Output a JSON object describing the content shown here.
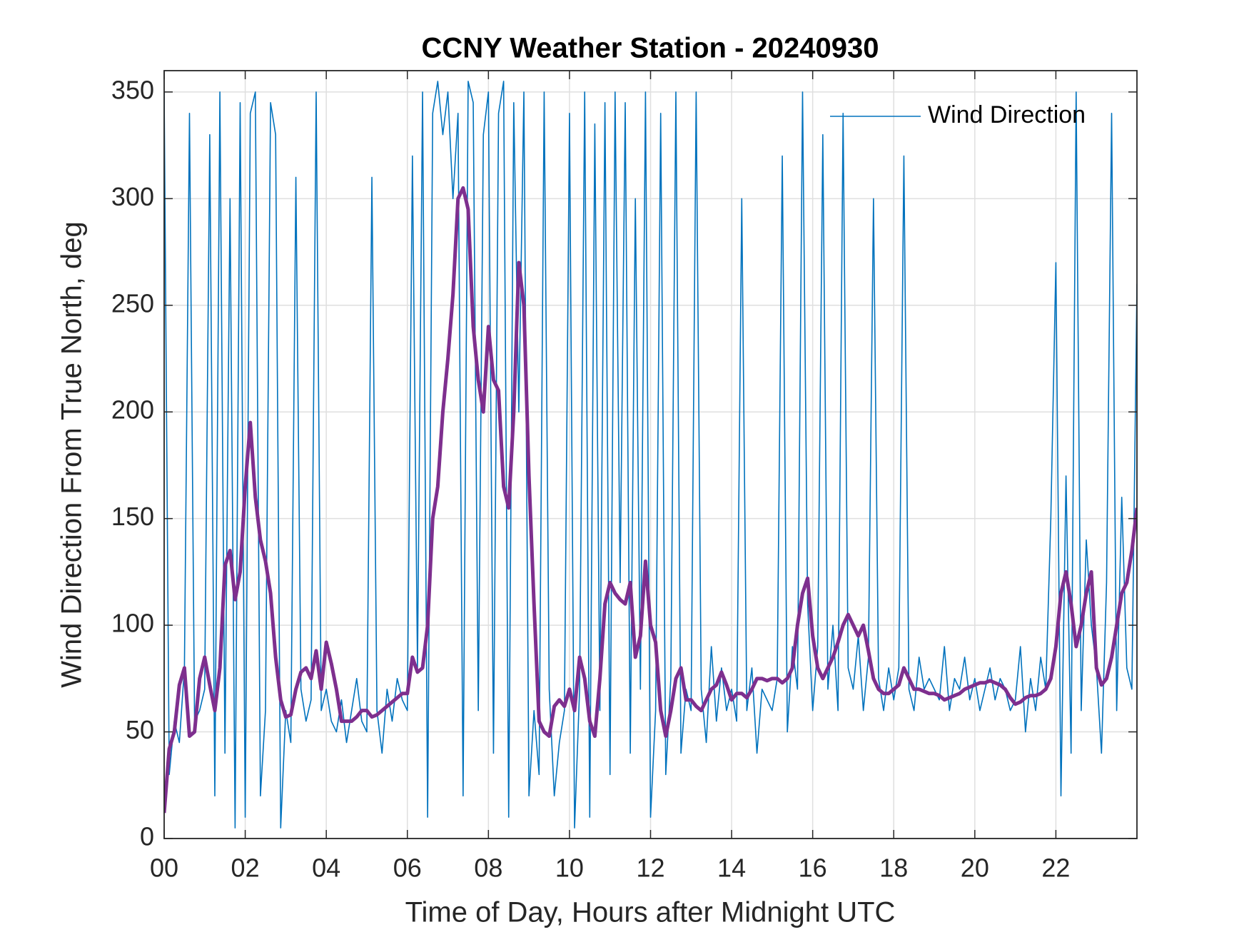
{
  "chart_data": {
    "type": "line",
    "title": "CCNY Weather Station - 20240930",
    "xlabel": "Time of Day, Hours after Midnight UTC",
    "ylabel": "Wind Direction From True North, deg",
    "xlim": [
      0,
      24
    ],
    "ylim": [
      0,
      360
    ],
    "xticks": [
      {
        "value": 0,
        "label": "00"
      },
      {
        "value": 2,
        "label": "02"
      },
      {
        "value": 4,
        "label": "04"
      },
      {
        "value": 6,
        "label": "06"
      },
      {
        "value": 8,
        "label": "08"
      },
      10,
      12,
      14,
      16,
      18,
      20,
      22
    ],
    "yticks": [
      0,
      50,
      100,
      150,
      200,
      250,
      300,
      350
    ],
    "grid": true,
    "legend": "upper right",
    "x": [
      0,
      0.125,
      0.25,
      0.375,
      0.5,
      0.625,
      0.75,
      0.875,
      1,
      1.125,
      1.25,
      1.375,
      1.5,
      1.625,
      1.75,
      1.875,
      2,
      2.125,
      2.25,
      2.375,
      2.5,
      2.625,
      2.75,
      2.875,
      3,
      3.125,
      3.25,
      3.375,
      3.5,
      3.625,
      3.75,
      3.875,
      4,
      4.125,
      4.25,
      4.375,
      4.5,
      4.625,
      4.75,
      4.875,
      5,
      5.125,
      5.25,
      5.375,
      5.5,
      5.625,
      5.75,
      5.875,
      6,
      6.125,
      6.25,
      6.375,
      6.5,
      6.625,
      6.75,
      6.875,
      7,
      7.125,
      7.25,
      7.375,
      7.5,
      7.625,
      7.75,
      7.875,
      8,
      8.125,
      8.25,
      8.375,
      8.5,
      8.625,
      8.75,
      8.875,
      9,
      9.125,
      9.25,
      9.375,
      9.5,
      9.625,
      9.75,
      9.875,
      10,
      10.125,
      10.25,
      10.375,
      10.5,
      10.625,
      10.75,
      10.875,
      11,
      11.125,
      11.25,
      11.375,
      11.5,
      11.625,
      11.75,
      11.875,
      12,
      12.125,
      12.25,
      12.375,
      12.5,
      12.625,
      12.75,
      12.875,
      13,
      13.125,
      13.25,
      13.375,
      13.5,
      13.625,
      13.75,
      13.875,
      14,
      14.125,
      14.25,
      14.375,
      14.5,
      14.625,
      14.75,
      14.875,
      15,
      15.125,
      15.25,
      15.375,
      15.5,
      15.625,
      15.75,
      15.875,
      16,
      16.125,
      16.25,
      16.375,
      16.5,
      16.625,
      16.75,
      16.875,
      17,
      17.125,
      17.25,
      17.375,
      17.5,
      17.625,
      17.75,
      17.875,
      18,
      18.125,
      18.25,
      18.375,
      18.5,
      18.625,
      18.75,
      18.875,
      19,
      19.125,
      19.25,
      19.375,
      19.5,
      19.625,
      19.75,
      19.875,
      20,
      20.125,
      20.25,
      20.375,
      20.5,
      20.625,
      20.75,
      20.875,
      21,
      21.125,
      21.25,
      21.375,
      21.5,
      21.625,
      21.75,
      21.875,
      22,
      22.125,
      22.25,
      22.375,
      22.5,
      22.625,
      22.75,
      22.875,
      23,
      23.125,
      23.25,
      23.375,
      23.5,
      23.625,
      23.75,
      23.875,
      24
    ],
    "series": [
      {
        "name": "Wind Direction",
        "color": "#0072bd",
        "values": [
          350,
          30,
          55,
          45,
          80,
          340,
          55,
          60,
          70,
          330,
          20,
          350,
          40,
          300,
          5,
          345,
          10,
          340,
          350,
          20,
          60,
          345,
          330,
          5,
          60,
          45,
          310,
          70,
          55,
          65,
          350,
          60,
          70,
          55,
          50,
          65,
          45,
          60,
          75,
          55,
          50,
          310,
          60,
          40,
          70,
          55,
          75,
          65,
          60,
          320,
          80,
          350,
          10,
          340,
          355,
          330,
          350,
          300,
          340,
          20,
          355,
          345,
          60,
          330,
          350,
          40,
          340,
          355,
          10,
          345,
          200,
          350,
          20,
          60,
          30,
          350,
          70,
          20,
          45,
          60,
          340,
          5,
          70,
          350,
          10,
          335,
          60,
          345,
          30,
          350,
          120,
          345,
          40,
          300,
          70,
          350,
          10,
          60,
          340,
          30,
          75,
          350,
          40,
          70,
          60,
          350,
          70,
          45,
          90,
          55,
          80,
          60,
          70,
          55,
          300,
          60,
          80,
          40,
          70,
          65,
          60,
          75,
          320,
          50,
          90,
          70,
          350,
          110,
          60,
          90,
          330,
          70,
          100,
          60,
          340,
          80,
          70,
          95,
          60,
          85,
          300,
          75,
          60,
          80,
          65,
          80,
          320,
          70,
          60,
          85,
          70,
          75,
          70,
          65,
          90,
          60,
          75,
          70,
          85,
          65,
          75,
          60,
          70,
          80,
          65,
          75,
          70,
          60,
          65,
          90,
          50,
          75,
          60,
          85,
          70,
          150,
          270,
          20,
          170,
          40,
          350,
          60,
          140,
          100,
          80,
          40,
          120,
          340,
          60,
          160,
          80,
          70,
          260
        ]
      },
      {
        "color": "#7e2f8e",
        "values": [
          12,
          42,
          50,
          72,
          80,
          48,
          50,
          75,
          85,
          72,
          60,
          80,
          128,
          135,
          112,
          125,
          165,
          195,
          160,
          140,
          130,
          115,
          85,
          65,
          57,
          58,
          70,
          78,
          80,
          75,
          88,
          70,
          92,
          82,
          70,
          55,
          55,
          55,
          57,
          60,
          60,
          57,
          58,
          60,
          62,
          64,
          66,
          68,
          68,
          85,
          78,
          80,
          100,
          150,
          165,
          200,
          225,
          255,
          300,
          305,
          295,
          240,
          215,
          200,
          240,
          215,
          210,
          165,
          155,
          200,
          270,
          250,
          170,
          110,
          55,
          50,
          48,
          62,
          65,
          62,
          70,
          60,
          85,
          75,
          55,
          48,
          75,
          110,
          120,
          115,
          112,
          110,
          120,
          85,
          95,
          130,
          100,
          92,
          60,
          48,
          60,
          75,
          80,
          65,
          65,
          62,
          60,
          65,
          70,
          72,
          78,
          72,
          65,
          68,
          68,
          66,
          70,
          75,
          75,
          74,
          75,
          75,
          73,
          75,
          80,
          100,
          115,
          122,
          95,
          80,
          75,
          80,
          85,
          92,
          100,
          105,
          100,
          95,
          100,
          88,
          75,
          70,
          68,
          68,
          70,
          72,
          80,
          75,
          70,
          70,
          69,
          68,
          68,
          67,
          65,
          66,
          67,
          68,
          70,
          71,
          72,
          73,
          73,
          74,
          73,
          72,
          70,
          66,
          63,
          64,
          66,
          67,
          67,
          68,
          70,
          75,
          90,
          115,
          125,
          110,
          90,
          100,
          115,
          125,
          80,
          72,
          75,
          85,
          100,
          115,
          120,
          135,
          155
        ]
      }
    ]
  }
}
